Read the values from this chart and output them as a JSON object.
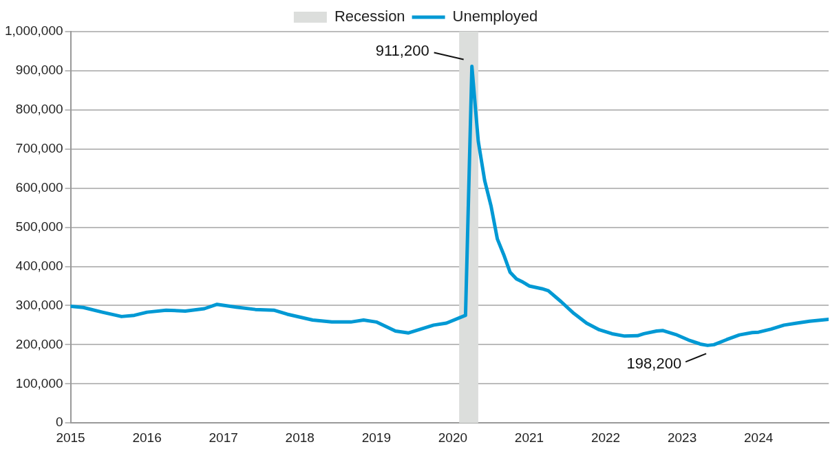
{
  "chart_data": {
    "type": "line",
    "legend": "top",
    "grid": "y",
    "marker": "none",
    "line_style": "solid",
    "xlim": [
      "2015-01",
      "2024-12"
    ],
    "xticks": [
      "2015",
      "2016",
      "2017",
      "2018",
      "2019",
      "2020",
      "2021",
      "2022",
      "2023",
      "2024"
    ],
    "ylim": [
      0,
      1000000
    ],
    "yticks": [
      {
        "value": 0,
        "label": "0"
      },
      {
        "value": 100000,
        "label": "100,000"
      },
      {
        "value": 200000,
        "label": "200,000"
      },
      {
        "value": 300000,
        "label": "300,000"
      },
      {
        "value": 400000,
        "label": "400,000"
      },
      {
        "value": 500000,
        "label": "500,000"
      },
      {
        "value": 600000,
        "label": "600,000"
      },
      {
        "value": 700000,
        "label": "700,000"
      },
      {
        "value": 800000,
        "label": "800,000"
      },
      {
        "value": 900000,
        "label": "900,000"
      },
      {
        "value": 1000000,
        "label": "1,000,000"
      }
    ],
    "bands": [
      {
        "axis": "x",
        "from": "2020-02",
        "to": "2020-05",
        "label": "Recession",
        "color": "#dcdedc"
      }
    ],
    "series": [
      {
        "name": "Unemployed",
        "color": "#0099d4",
        "x": [
          "2015-01",
          "2015-03",
          "2015-06",
          "2015-09",
          "2015-11",
          "2016-01",
          "2016-04",
          "2016-07",
          "2016-10",
          "2016-12",
          "2017-03",
          "2017-06",
          "2017-09",
          "2017-11",
          "2018-03",
          "2018-06",
          "2018-09",
          "2018-11",
          "2019-01",
          "2019-04",
          "2019-06",
          "2019-08",
          "2019-10",
          "2019-12",
          "2020-03",
          "2020-04",
          "2020-05",
          "2020-06",
          "2020-07",
          "2020-08",
          "2020-09",
          "2020-10",
          "2020-11",
          "2020-12",
          "2021-01",
          "2021-03",
          "2021-04",
          "2021-06",
          "2021-08",
          "2021-10",
          "2021-12",
          "2022-02",
          "2022-04",
          "2022-06",
          "2022-07",
          "2022-09",
          "2022-10",
          "2022-12",
          "2023-02",
          "2023-04",
          "2023-05",
          "2023-06",
          "2023-08",
          "2023-10",
          "2023-12",
          "2024-01",
          "2024-03",
          "2024-05",
          "2024-07",
          "2024-09",
          "2024-12"
        ],
        "values": [
          298000,
          295000,
          283000,
          272000,
          275000,
          283000,
          288000,
          286000,
          292000,
          303000,
          296000,
          290000,
          288000,
          278000,
          263000,
          258000,
          258000,
          263000,
          258000,
          235000,
          230000,
          240000,
          250000,
          255000,
          275000,
          911200,
          720000,
          620000,
          555000,
          470000,
          430000,
          385000,
          368000,
          360000,
          350000,
          343000,
          338000,
          310000,
          280000,
          255000,
          238000,
          228000,
          222000,
          223000,
          228000,
          235000,
          236000,
          226000,
          212000,
          201000,
          198200,
          200000,
          213000,
          225000,
          231000,
          232000,
          240000,
          250000,
          255000,
          260000,
          265000
        ]
      }
    ],
    "annotations": [
      {
        "text": "911,200",
        "x": "2020-04",
        "y": 911200
      },
      {
        "text": "198,200",
        "x": "2023-05",
        "y": 198200
      }
    ]
  }
}
